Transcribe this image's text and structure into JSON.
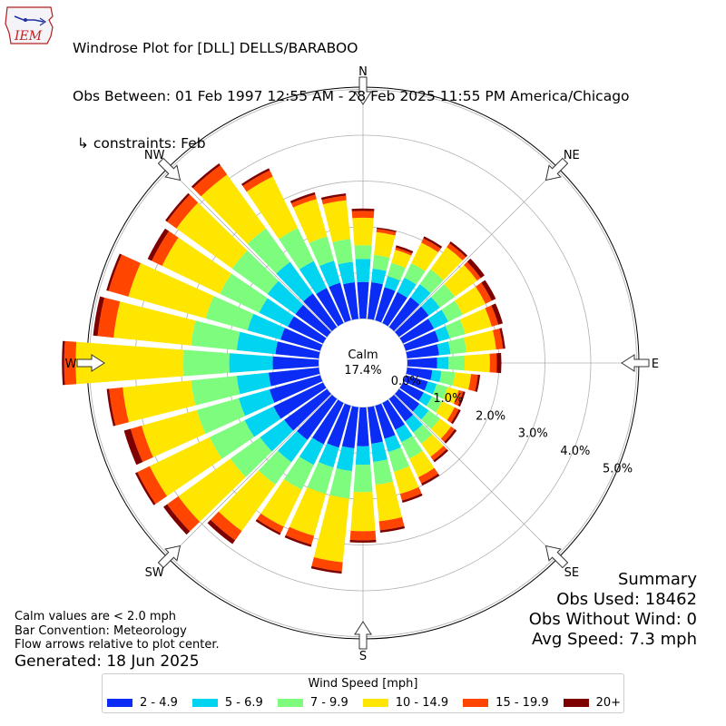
{
  "header": {
    "logo_text": "IEM",
    "title_line1": "Windrose Plot for [DLL] DELLS/BARABOO",
    "title_line2": "Obs Between: 01 Feb 1997 12:55 AM - 28 Feb 2025 11:55 PM America/Chicago",
    "title_line3": " ↳ constraints: Feb"
  },
  "notes": {
    "line1": "Calm values are < 2.0 mph",
    "line2": "Bar Convention: Meteorology",
    "line3": "Flow arrows relative to plot center.",
    "generated": "Generated: 18 Jun 2025"
  },
  "summary": {
    "title": "Summary",
    "obs_used": "Obs Used: 18462",
    "obs_without_wind": "Obs Without Wind: 0",
    "avg_speed": "Avg Speed: 7.3 mph"
  },
  "legend": {
    "title": "Wind Speed [mph]",
    "items": [
      {
        "label": "2 - 4.9",
        "color": "#0a2cf5"
      },
      {
        "label": "5 - 6.9",
        "color": "#00d4f0"
      },
      {
        "label": "7 - 9.9",
        "color": "#7dfc7d"
      },
      {
        "label": "10 - 14.9",
        "color": "#ffe600"
      },
      {
        "label": "15 - 19.9",
        "color": "#ff4500"
      },
      {
        "label": "20+",
        "color": "#7f0000"
      }
    ]
  },
  "chart_data": {
    "type": "windrose",
    "calm_label": "Calm",
    "calm_value": "17.4%",
    "radial_labels": [
      "0.0%",
      "1.0%",
      "2.0%",
      "3.0%",
      "4.0%",
      "5.0%"
    ],
    "radial_values": [
      0,
      1,
      2,
      3,
      4,
      5
    ],
    "compass_labels": [
      "N",
      "NE",
      "E",
      "SE",
      "S",
      "SW",
      "W",
      "NW"
    ],
    "series": [
      {
        "name": "2 - 4.9",
        "color": "#0a2cf5"
      },
      {
        "name": "5 - 6.9",
        "color": "#00d4f0"
      },
      {
        "name": "7 - 9.9",
        "color": "#7dfc7d"
      },
      {
        "name": "10 - 14.9",
        "color": "#ffe600"
      },
      {
        "name": "15 - 19.9",
        "color": "#ff4500"
      },
      {
        "name": "20+",
        "color": "#7f0000"
      }
    ],
    "directions": [
      {
        "deg": 0,
        "cum": [
          0.8,
          1.3,
          1.6,
          2.2,
          2.35,
          2.4
        ]
      },
      {
        "deg": 10,
        "cum": [
          0.8,
          1.1,
          1.4,
          1.9,
          1.97,
          2.0
        ]
      },
      {
        "deg": 20,
        "cum": [
          0.75,
          1.0,
          1.3,
          1.6,
          1.65,
          1.7
        ]
      },
      {
        "deg": 30,
        "cum": [
          0.75,
          1.1,
          1.45,
          1.95,
          2.05,
          2.1
        ]
      },
      {
        "deg": 40,
        "cum": [
          0.8,
          1.15,
          1.55,
          2.15,
          2.25,
          2.3
        ]
      },
      {
        "deg": 50,
        "cum": [
          0.8,
          1.1,
          1.5,
          2.1,
          2.2,
          2.3
        ]
      },
      {
        "deg": 60,
        "cum": [
          0.75,
          1.1,
          1.45,
          2.0,
          2.15,
          2.25
        ]
      },
      {
        "deg": 70,
        "cum": [
          0.75,
          1.0,
          1.35,
          1.95,
          2.1,
          2.2
        ]
      },
      {
        "deg": 80,
        "cum": [
          0.7,
          0.95,
          1.3,
          1.95,
          2.1,
          2.15
        ]
      },
      {
        "deg": 90,
        "cum": [
          0.65,
          0.9,
          1.25,
          1.8,
          1.95,
          2.05
        ]
      },
      {
        "deg": 100,
        "cum": [
          0.55,
          0.75,
          1.05,
          1.4,
          1.55,
          1.6
        ]
      },
      {
        "deg": 110,
        "cum": [
          0.5,
          0.7,
          0.95,
          1.2,
          1.3,
          1.35
        ]
      },
      {
        "deg": 120,
        "cum": [
          0.5,
          0.7,
          0.95,
          1.25,
          1.35,
          1.4
        ]
      },
      {
        "deg": 130,
        "cum": [
          0.55,
          0.8,
          1.1,
          1.4,
          1.5,
          1.55
        ]
      },
      {
        "deg": 140,
        "cum": [
          0.6,
          0.9,
          1.2,
          1.55,
          1.65,
          1.7
        ]
      },
      {
        "deg": 150,
        "cum": [
          0.65,
          0.95,
          1.35,
          1.8,
          1.95,
          2.0
        ]
      },
      {
        "deg": 160,
        "cum": [
          0.75,
          1.05,
          1.5,
          2.0,
          2.15,
          2.2
        ]
      },
      {
        "deg": 170,
        "cum": [
          0.8,
          1.2,
          1.7,
          2.5,
          2.7,
          2.75
        ]
      },
      {
        "deg": 180,
        "cum": [
          0.85,
          1.25,
          1.85,
          2.7,
          2.9,
          2.95
        ]
      },
      {
        "deg": 190,
        "cum": [
          0.9,
          1.4,
          2.0,
          3.4,
          3.6,
          3.65
        ]
      },
      {
        "deg": 200,
        "cum": [
          0.95,
          1.4,
          2.0,
          2.95,
          3.15,
          3.2
        ]
      },
      {
        "deg": 210,
        "cum": [
          1.0,
          1.5,
          2.1,
          3.0,
          3.15,
          3.2
        ]
      },
      {
        "deg": 220,
        "cum": [
          1.1,
          1.7,
          2.3,
          3.55,
          3.8,
          3.9
        ]
      },
      {
        "deg": 230,
        "cum": [
          1.15,
          1.8,
          2.6,
          4.0,
          4.3,
          4.4
        ]
      },
      {
        "deg": 240,
        "cum": [
          1.2,
          1.9,
          2.75,
          4.2,
          4.5,
          4.55
        ]
      },
      {
        "deg": 250,
        "cum": [
          1.15,
          1.85,
          2.8,
          4.05,
          4.3,
          4.45
        ]
      },
      {
        "deg": 260,
        "cum": [
          1.1,
          1.8,
          2.8,
          4.3,
          4.6,
          4.65
        ]
      },
      {
        "deg": 270,
        "cum": [
          1.0,
          1.95,
          2.95,
          5.3,
          5.55,
          5.6
        ]
      },
      {
        "deg": 280,
        "cum": [
          0.95,
          1.8,
          2.8,
          4.5,
          4.85,
          4.95
        ]
      },
      {
        "deg": 290,
        "cum": [
          0.9,
          1.65,
          2.6,
          4.35,
          4.8,
          4.85
        ]
      },
      {
        "deg": 300,
        "cum": [
          0.85,
          1.55,
          2.5,
          3.9,
          4.15,
          4.25
        ]
      },
      {
        "deg": 310,
        "cum": [
          0.85,
          1.6,
          2.55,
          4.05,
          4.3,
          4.35
        ]
      },
      {
        "deg": 320,
        "cum": [
          0.9,
          1.75,
          2.65,
          4.1,
          4.35,
          4.4
        ]
      },
      {
        "deg": 330,
        "cum": [
          0.85,
          1.5,
          2.3,
          3.55,
          3.7,
          3.75
        ]
      },
      {
        "deg": 340,
        "cum": [
          0.85,
          1.35,
          1.9,
          2.75,
          2.85,
          2.9
        ]
      },
      {
        "deg": 350,
        "cum": [
          0.8,
          1.25,
          1.75,
          2.6,
          2.7,
          2.75
        ]
      }
    ]
  }
}
